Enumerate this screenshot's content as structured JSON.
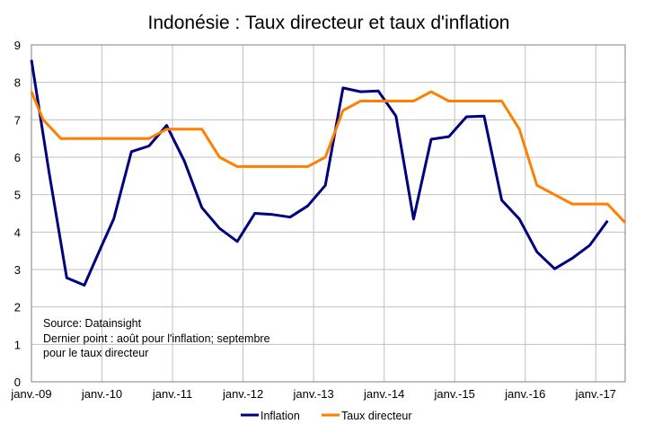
{
  "chart_data": {
    "type": "line",
    "title": "Indonésie : Taux directeur et taux d'inflation",
    "xlabel": "",
    "ylabel": "",
    "ylim": [
      0,
      9
    ],
    "yticks": [
      0,
      1,
      2,
      3,
      4,
      5,
      6,
      7,
      8,
      9
    ],
    "xlim": [
      "2009-01",
      "2017-06"
    ],
    "xtick_labels": [
      "janv.-09",
      "janv.-10",
      "janv.-11",
      "janv.-12",
      "janv.-13",
      "janv.-14",
      "janv.-15",
      "janv.-16",
      "janv.-17"
    ],
    "grid": true,
    "legend": {
      "position": "bottom"
    },
    "annotation": [
      "Source: Datainsight",
      "Dernier point : août pour l'inflation; septembre",
      "pour le taux directeur"
    ],
    "series": [
      {
        "name": "Inflation",
        "color": "#00007f",
        "points": [
          [
            "2009-01",
            8.6
          ],
          [
            "2009-04",
            5.6
          ],
          [
            "2009-07",
            2.78
          ],
          [
            "2009-10",
            2.58
          ],
          [
            "2010-01",
            3.65
          ],
          [
            "2010-03",
            4.35
          ],
          [
            "2010-06",
            6.15
          ],
          [
            "2010-09",
            6.3
          ],
          [
            "2010-12",
            6.85
          ],
          [
            "2011-03",
            5.9
          ],
          [
            "2011-06",
            4.65
          ],
          [
            "2011-09",
            4.1
          ],
          [
            "2011-12",
            3.75
          ],
          [
            "2012-03",
            4.5
          ],
          [
            "2012-06",
            4.47
          ],
          [
            "2012-09",
            4.4
          ],
          [
            "2012-12",
            4.7
          ],
          [
            "2013-03",
            5.25
          ],
          [
            "2013-06",
            7.85
          ],
          [
            "2013-09",
            7.75
          ],
          [
            "2013-12",
            7.77
          ],
          [
            "2014-03",
            7.1
          ],
          [
            "2014-06",
            4.35
          ],
          [
            "2014-09",
            6.48
          ],
          [
            "2014-12",
            6.55
          ],
          [
            "2015-03",
            7.08
          ],
          [
            "2015-06",
            7.1
          ],
          [
            "2015-09",
            4.85
          ],
          [
            "2015-12",
            4.35
          ],
          [
            "2016-03",
            3.47
          ],
          [
            "2016-06",
            3.02
          ],
          [
            "2016-09",
            3.3
          ],
          [
            "2016-12",
            3.65
          ],
          [
            "2017-03",
            4.3
          ]
        ]
      },
      {
        "name": "Taux directeur",
        "color": "#ff7f00",
        "points": [
          [
            "2009-01",
            7.75
          ],
          [
            "2009-03",
            7.0
          ],
          [
            "2009-06",
            6.5
          ],
          [
            "2009-09",
            6.5
          ],
          [
            "2009-12",
            6.5
          ],
          [
            "2010-03",
            6.5
          ],
          [
            "2010-06",
            6.5
          ],
          [
            "2010-09",
            6.5
          ],
          [
            "2010-12",
            6.75
          ],
          [
            "2011-03",
            6.75
          ],
          [
            "2011-06",
            6.75
          ],
          [
            "2011-09",
            6.0
          ],
          [
            "2011-12",
            5.75
          ],
          [
            "2012-03",
            5.75
          ],
          [
            "2012-06",
            5.75
          ],
          [
            "2012-09",
            5.75
          ],
          [
            "2012-12",
            5.75
          ],
          [
            "2013-03",
            6.0
          ],
          [
            "2013-06",
            7.25
          ],
          [
            "2013-09",
            7.5
          ],
          [
            "2013-12",
            7.5
          ],
          [
            "2014-03",
            7.5
          ],
          [
            "2014-06",
            7.5
          ],
          [
            "2014-09",
            7.75
          ],
          [
            "2014-12",
            7.5
          ],
          [
            "2015-03",
            7.5
          ],
          [
            "2015-06",
            7.5
          ],
          [
            "2015-09",
            7.5
          ],
          [
            "2015-12",
            6.75
          ],
          [
            "2016-03",
            5.25
          ],
          [
            "2016-06",
            5.0
          ],
          [
            "2016-09",
            4.75
          ],
          [
            "2016-12",
            4.75
          ],
          [
            "2017-03",
            4.75
          ],
          [
            "2017-06",
            4.25
          ]
        ]
      }
    ]
  }
}
